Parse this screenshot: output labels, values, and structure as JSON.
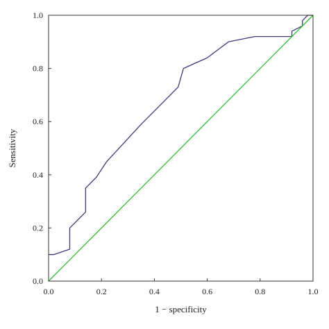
{
  "chart_data": {
    "type": "line",
    "title": "",
    "xlabel": "1 − specificity",
    "ylabel": "Sensitivity",
    "xlim": [
      0.0,
      1.0
    ],
    "ylim": [
      0.0,
      1.0
    ],
    "grid": false,
    "legend": "none",
    "x_ticks": [
      "0.0",
      "0.2",
      "0.4",
      "0.6",
      "0.8",
      "1.0"
    ],
    "y_ticks": [
      "0.0",
      "0.2",
      "0.4",
      "0.6",
      "0.8",
      "1.0"
    ],
    "series": [
      {
        "color": "#3f3a78",
        "x": [
          0.0,
          0.02,
          0.08,
          0.08,
          0.14,
          0.14,
          0.18,
          0.22,
          0.35,
          0.49,
          0.51,
          0.6,
          0.68,
          0.78,
          0.92,
          0.92,
          0.96,
          0.96,
          0.98,
          0.98,
          1.0
        ],
        "y": [
          0.1,
          0.1,
          0.12,
          0.2,
          0.26,
          0.35,
          0.39,
          0.45,
          0.59,
          0.73,
          0.8,
          0.84,
          0.9,
          0.92,
          0.92,
          0.94,
          0.96,
          0.98,
          1.0,
          1.0,
          1.0
        ]
      },
      {
        "color": "#33bb33",
        "x": [
          0.0,
          1.0
        ],
        "y": [
          0.0,
          1.0
        ]
      }
    ]
  }
}
